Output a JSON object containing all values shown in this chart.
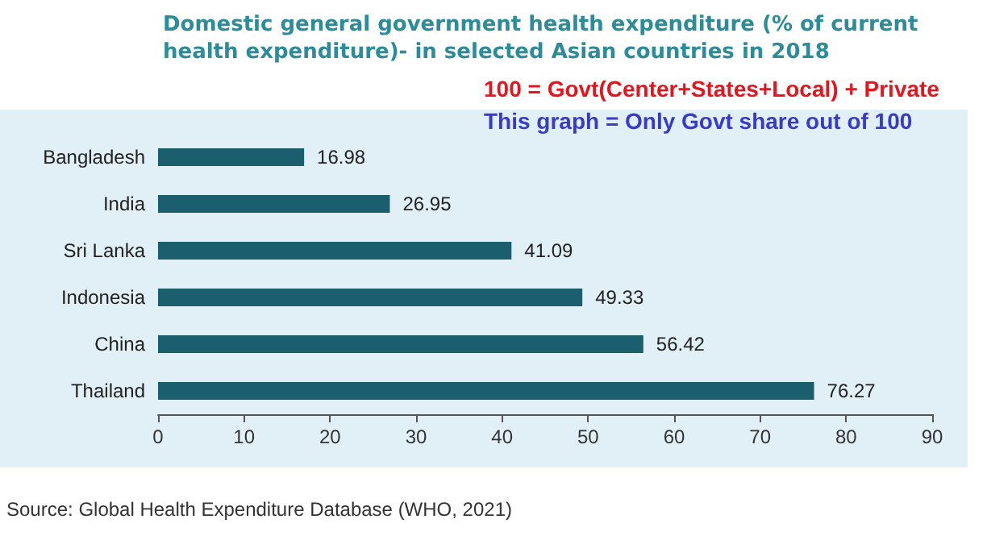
{
  "chart_data": {
    "type": "bar",
    "orientation": "horizontal",
    "title": "Domestic general government health expenditure (% of current health expenditure)- in selected Asian countries in 2018",
    "categories": [
      "Bangladesh",
      "India",
      "Sri Lanka",
      "Indonesia",
      "China",
      "Thailand"
    ],
    "values": [
      16.98,
      26.95,
      41.09,
      49.33,
      56.42,
      76.27
    ],
    "color": "#1b5e6e",
    "xlim": [
      0,
      90
    ],
    "xticks": [
      0,
      10,
      20,
      30,
      40,
      50,
      60,
      70,
      80,
      90
    ],
    "grid": false,
    "data_labels": true,
    "annotations": [
      "100 = Govt(Center+States+Local) + Private",
      "This graph = Only Govt share out of 100",
      "Source: Global Health Expenditure Database (WHO, 2021)"
    ]
  }
}
